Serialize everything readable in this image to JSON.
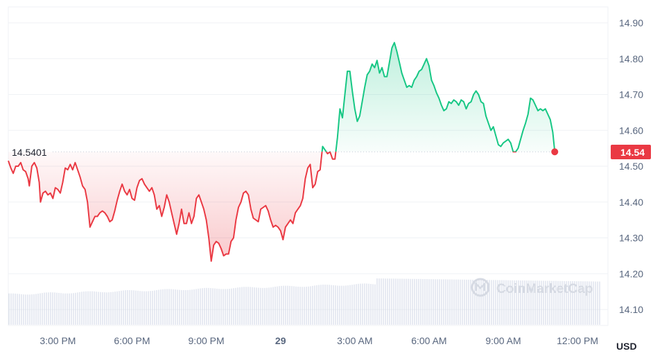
{
  "chart_data": {
    "type": "area",
    "reference_price": 14.5401,
    "reference_label": "14.5401",
    "current_price_label": "14.54",
    "currency": "USD",
    "watermark": "CoinMarketCap",
    "ylim": [
      14.05,
      14.95
    ],
    "yticks": [
      {
        "value": 14.9,
        "label": "14.90"
      },
      {
        "value": 14.8,
        "label": "14.80"
      },
      {
        "value": 14.7,
        "label": "14.70"
      },
      {
        "value": 14.6,
        "label": "14.60"
      },
      {
        "value": 14.5,
        "label": "14.50"
      },
      {
        "value": 14.4,
        "label": "14.40"
      },
      {
        "value": 14.3,
        "label": "14.30"
      },
      {
        "value": 14.2,
        "label": "14.20"
      },
      {
        "value": 14.1,
        "label": "14.10"
      }
    ],
    "xlim": [
      13.0,
      37.4
    ],
    "xticks": [
      {
        "value": 15,
        "label": "3:00 PM",
        "bold": false
      },
      {
        "value": 18,
        "label": "6:00 PM",
        "bold": false
      },
      {
        "value": 21,
        "label": "9:00 PM",
        "bold": false
      },
      {
        "value": 24,
        "label": "29",
        "bold": true
      },
      {
        "value": 27,
        "label": "3:00 AM",
        "bold": false
      },
      {
        "value": 30,
        "label": "6:00 AM",
        "bold": false
      },
      {
        "value": 33,
        "label": "9:00 AM",
        "bold": false
      },
      {
        "value": 36,
        "label": "12:00 PM",
        "bold": false
      }
    ],
    "colors": {
      "up": "#16c784",
      "down": "#ea3943",
      "grid": "#eff2f5",
      "volume": "#cfd6e4"
    },
    "series": [
      {
        "points": [
          [
            13.0,
            14.515
          ],
          [
            13.1,
            14.495
          ],
          [
            13.2,
            14.48
          ],
          [
            13.3,
            14.5
          ],
          [
            13.4,
            14.5
          ],
          [
            13.5,
            14.51
          ],
          [
            13.6,
            14.49
          ],
          [
            13.7,
            14.485
          ],
          [
            13.8,
            14.465
          ],
          [
            13.85,
            14.445
          ],
          [
            13.95,
            14.5
          ],
          [
            14.05,
            14.51
          ],
          [
            14.15,
            14.495
          ],
          [
            14.25,
            14.455
          ],
          [
            14.3,
            14.4
          ],
          [
            14.4,
            14.425
          ],
          [
            14.5,
            14.43
          ],
          [
            14.6,
            14.42
          ],
          [
            14.7,
            14.425
          ],
          [
            14.8,
            14.41
          ],
          [
            14.9,
            14.44
          ],
          [
            15.0,
            14.435
          ],
          [
            15.1,
            14.425
          ],
          [
            15.2,
            14.455
          ],
          [
            15.3,
            14.495
          ],
          [
            15.4,
            14.49
          ],
          [
            15.5,
            14.505
          ],
          [
            15.6,
            14.49
          ],
          [
            15.7,
            14.51
          ],
          [
            15.8,
            14.49
          ],
          [
            15.9,
            14.47
          ],
          [
            16.0,
            14.445
          ],
          [
            16.1,
            14.435
          ],
          [
            16.2,
            14.4
          ],
          [
            16.3,
            14.33
          ],
          [
            16.4,
            14.345
          ],
          [
            16.5,
            14.36
          ],
          [
            16.6,
            14.36
          ],
          [
            16.7,
            14.37
          ],
          [
            16.8,
            14.375
          ],
          [
            16.9,
            14.37
          ],
          [
            17.0,
            14.36
          ],
          [
            17.1,
            14.345
          ],
          [
            17.2,
            14.35
          ],
          [
            17.3,
            14.375
          ],
          [
            17.4,
            14.405
          ],
          [
            17.5,
            14.43
          ],
          [
            17.6,
            14.45
          ],
          [
            17.7,
            14.43
          ],
          [
            17.8,
            14.42
          ],
          [
            17.9,
            14.435
          ],
          [
            18.0,
            14.41
          ],
          [
            18.1,
            14.405
          ],
          [
            18.2,
            14.44
          ],
          [
            18.3,
            14.46
          ],
          [
            18.4,
            14.465
          ],
          [
            18.5,
            14.45
          ],
          [
            18.6,
            14.44
          ],
          [
            18.7,
            14.43
          ],
          [
            18.8,
            14.44
          ],
          [
            18.9,
            14.42
          ],
          [
            19.0,
            14.38
          ],
          [
            19.1,
            14.39
          ],
          [
            19.2,
            14.36
          ],
          [
            19.3,
            14.385
          ],
          [
            19.4,
            14.42
          ],
          [
            19.5,
            14.4
          ],
          [
            19.6,
            14.37
          ],
          [
            19.7,
            14.34
          ],
          [
            19.8,
            14.31
          ],
          [
            19.9,
            14.34
          ],
          [
            20.0,
            14.38
          ],
          [
            20.1,
            14.34
          ],
          [
            20.2,
            14.34
          ],
          [
            20.3,
            14.37
          ],
          [
            20.4,
            14.34
          ],
          [
            20.5,
            14.36
          ],
          [
            20.6,
            14.41
          ],
          [
            20.7,
            14.42
          ],
          [
            20.8,
            14.4
          ],
          [
            20.9,
            14.38
          ],
          [
            21.0,
            14.35
          ],
          [
            21.1,
            14.3
          ],
          [
            21.2,
            14.235
          ],
          [
            21.3,
            14.28
          ],
          [
            21.4,
            14.29
          ],
          [
            21.5,
            14.285
          ],
          [
            21.6,
            14.27
          ],
          [
            21.7,
            14.25
          ],
          [
            21.8,
            14.255
          ],
          [
            21.9,
            14.255
          ],
          [
            22.0,
            14.29
          ],
          [
            22.1,
            14.3
          ],
          [
            22.2,
            14.35
          ],
          [
            22.3,
            14.385
          ],
          [
            22.4,
            14.4
          ],
          [
            22.5,
            14.425
          ],
          [
            22.6,
            14.43
          ],
          [
            22.7,
            14.42
          ],
          [
            22.8,
            14.38
          ],
          [
            22.9,
            14.355
          ],
          [
            23.0,
            14.35
          ],
          [
            23.1,
            14.345
          ],
          [
            23.2,
            14.38
          ],
          [
            23.3,
            14.385
          ],
          [
            23.4,
            14.39
          ],
          [
            23.5,
            14.375
          ],
          [
            23.6,
            14.35
          ],
          [
            23.7,
            14.33
          ],
          [
            23.8,
            14.335
          ],
          [
            23.9,
            14.33
          ],
          [
            24.0,
            14.32
          ],
          [
            24.1,
            14.295
          ],
          [
            24.2,
            14.33
          ],
          [
            24.3,
            14.34
          ],
          [
            24.4,
            14.35
          ],
          [
            24.5,
            14.34
          ],
          [
            24.6,
            14.37
          ],
          [
            24.7,
            14.38
          ],
          [
            24.8,
            14.39
          ],
          [
            24.9,
            14.41
          ],
          [
            25.0,
            14.465
          ],
          [
            25.1,
            14.495
          ],
          [
            25.2,
            14.505
          ],
          [
            25.3,
            14.44
          ],
          [
            25.4,
            14.45
          ],
          [
            25.5,
            14.485
          ],
          [
            25.6,
            14.49
          ],
          [
            25.7,
            14.555
          ],
          [
            25.8,
            14.545
          ],
          [
            25.9,
            14.535
          ],
          [
            26.0,
            14.54
          ],
          [
            26.1,
            14.52
          ],
          [
            26.2,
            14.52
          ],
          [
            26.3,
            14.58
          ],
          [
            26.4,
            14.66
          ],
          [
            26.5,
            14.635
          ],
          [
            26.6,
            14.7
          ],
          [
            26.7,
            14.765
          ],
          [
            26.8,
            14.765
          ],
          [
            26.9,
            14.71
          ],
          [
            27.0,
            14.66
          ],
          [
            27.1,
            14.625
          ],
          [
            27.2,
            14.64
          ],
          [
            27.3,
            14.68
          ],
          [
            27.4,
            14.72
          ],
          [
            27.5,
            14.755
          ],
          [
            27.6,
            14.765
          ],
          [
            27.7,
            14.785
          ],
          [
            27.8,
            14.775
          ],
          [
            27.9,
            14.795
          ],
          [
            28.0,
            14.76
          ],
          [
            28.1,
            14.775
          ],
          [
            28.2,
            14.75
          ],
          [
            28.3,
            14.75
          ],
          [
            28.4,
            14.79
          ],
          [
            28.5,
            14.83
          ],
          [
            28.6,
            14.845
          ],
          [
            28.7,
            14.82
          ],
          [
            28.8,
            14.79
          ],
          [
            28.9,
            14.76
          ],
          [
            29.0,
            14.74
          ],
          [
            29.1,
            14.72
          ],
          [
            29.2,
            14.725
          ],
          [
            29.3,
            14.72
          ],
          [
            29.4,
            14.74
          ],
          [
            29.5,
            14.75
          ],
          [
            29.6,
            14.765
          ],
          [
            29.7,
            14.77
          ],
          [
            29.8,
            14.785
          ],
          [
            29.9,
            14.8
          ],
          [
            30.0,
            14.78
          ],
          [
            30.1,
            14.74
          ],
          [
            30.2,
            14.725
          ],
          [
            30.3,
            14.705
          ],
          [
            30.4,
            14.69
          ],
          [
            30.5,
            14.67
          ],
          [
            30.6,
            14.655
          ],
          [
            30.7,
            14.66
          ],
          [
            30.8,
            14.68
          ],
          [
            30.9,
            14.675
          ],
          [
            31.0,
            14.685
          ],
          [
            31.1,
            14.68
          ],
          [
            31.2,
            14.67
          ],
          [
            31.3,
            14.685
          ],
          [
            31.4,
            14.68
          ],
          [
            31.5,
            14.66
          ],
          [
            31.6,
            14.675
          ],
          [
            31.7,
            14.68
          ],
          [
            31.8,
            14.7
          ],
          [
            31.9,
            14.71
          ],
          [
            32.0,
            14.7
          ],
          [
            32.1,
            14.68
          ],
          [
            32.2,
            14.675
          ],
          [
            32.3,
            14.64
          ],
          [
            32.4,
            14.62
          ],
          [
            32.5,
            14.6
          ],
          [
            32.6,
            14.61
          ],
          [
            32.7,
            14.585
          ],
          [
            32.8,
            14.56
          ],
          [
            32.9,
            14.555
          ],
          [
            33.0,
            14.565
          ],
          [
            33.1,
            14.57
          ],
          [
            33.2,
            14.575
          ],
          [
            33.3,
            14.565
          ],
          [
            33.4,
            14.54
          ],
          [
            33.5,
            14.54
          ],
          [
            33.6,
            14.55
          ],
          [
            33.7,
            14.575
          ],
          [
            33.8,
            14.6
          ],
          [
            33.9,
            14.62
          ],
          [
            34.0,
            14.645
          ],
          [
            34.1,
            14.69
          ],
          [
            34.2,
            14.685
          ],
          [
            34.3,
            14.67
          ],
          [
            34.4,
            14.655
          ],
          [
            34.5,
            14.66
          ],
          [
            34.6,
            14.655
          ],
          [
            34.7,
            14.66
          ],
          [
            34.8,
            14.645
          ],
          [
            34.9,
            14.63
          ],
          [
            35.0,
            14.595
          ],
          [
            35.08,
            14.5401
          ]
        ]
      }
    ]
  }
}
